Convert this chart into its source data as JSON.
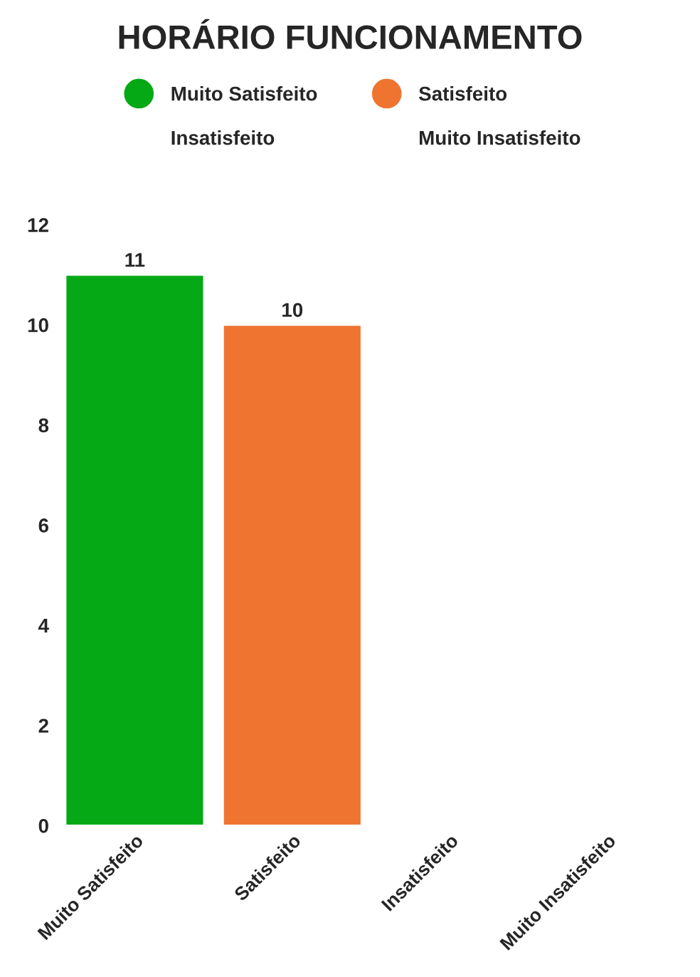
{
  "chart_data": {
    "type": "bar",
    "title": "HORÁRIO FUNCIONAMENTO",
    "categories": [
      "Muito Satisfeito",
      "Satisfeito",
      "Insatisfeito",
      "Muito Insatisfeito"
    ],
    "series": [
      {
        "name": "Muito Satisfeito",
        "color": "#05a815",
        "values": [
          11,
          null,
          null,
          null
        ],
        "value_labels": [
          "11",
          null,
          null,
          null
        ]
      },
      {
        "name": "Satisfeito",
        "color": "#ef7430",
        "values": [
          null,
          10,
          null,
          null
        ],
        "value_labels": [
          null,
          "10",
          null,
          null
        ]
      },
      {
        "name": "Insatisfeito",
        "color": null,
        "values": [
          null,
          null,
          null,
          null
        ]
      },
      {
        "name": "Muito Insatisfeito",
        "color": null,
        "values": [
          null,
          null,
          null,
          null
        ]
      }
    ],
    "ylim": [
      0,
      12
    ],
    "yticks": [
      0,
      2,
      4,
      6,
      8,
      10,
      12
    ],
    "grid": false,
    "legend": "top"
  }
}
